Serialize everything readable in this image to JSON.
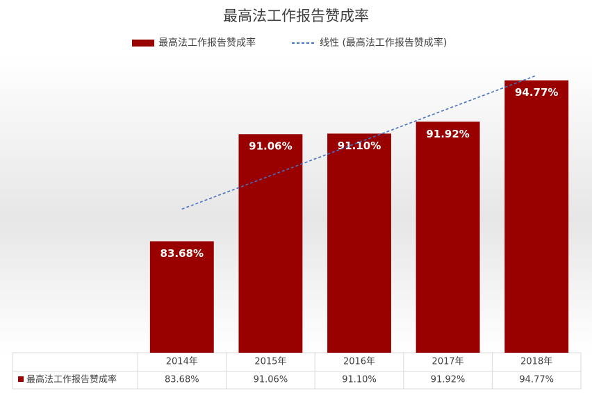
{
  "chart_data": {
    "type": "bar",
    "title": "最高法工作报告赞成率",
    "categories": [
      "2014年",
      "2015年",
      "2016年",
      "2017年",
      "2018年"
    ],
    "series": [
      {
        "name": "最高法工作报告赞成率",
        "color": "#990000",
        "values": [
          83.68,
          91.06,
          91.1,
          91.92,
          94.77
        ],
        "value_labels": [
          "83.68%",
          "91.06%",
          "91.10%",
          "91.92%",
          "94.77%"
        ]
      }
    ],
    "trendline": {
      "name": "线性 (最高法工作报告赞成率)",
      "kind": "linear",
      "color": "#4472c4"
    },
    "ylim": [
      76,
      96
    ],
    "legend": "top",
    "data_table": true
  }
}
